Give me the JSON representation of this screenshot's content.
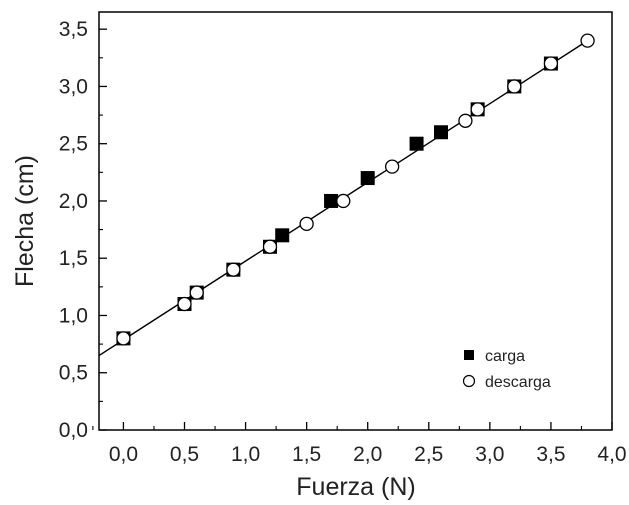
{
  "chart_data": {
    "type": "scatter",
    "xlabel": "Fuerza (N)",
    "ylabel": "Flecha (cm)",
    "xlim": [
      -0.2,
      4.0
    ],
    "ylim": [
      0.0,
      3.65
    ],
    "x_ticks": [
      {
        "value": 0.0,
        "label": "0,0"
      },
      {
        "value": 0.5,
        "label": "0,5"
      },
      {
        "value": 1.0,
        "label": "1,0"
      },
      {
        "value": 1.5,
        "label": "1,5"
      },
      {
        "value": 2.0,
        "label": "2,0"
      },
      {
        "value": 2.5,
        "label": "2,5"
      },
      {
        "value": 3.0,
        "label": "3,0"
      },
      {
        "value": 3.5,
        "label": "3,5"
      },
      {
        "value": 4.0,
        "label": "4,0"
      }
    ],
    "y_ticks": [
      {
        "value": 0.0,
        "label": "0,0"
      },
      {
        "value": 0.5,
        "label": "0,5"
      },
      {
        "value": 1.0,
        "label": "1,0"
      },
      {
        "value": 1.5,
        "label": "1,5"
      },
      {
        "value": 2.0,
        "label": "2,0"
      },
      {
        "value": 2.5,
        "label": "2,5"
      },
      {
        "value": 3.0,
        "label": "3,0"
      },
      {
        "value": 3.5,
        "label": "3,5"
      }
    ],
    "series": [
      {
        "name": "carga",
        "marker": "filled-square",
        "color": "#000000",
        "points": [
          {
            "x": 0.0,
            "y": 0.8
          },
          {
            "x": 0.5,
            "y": 1.1
          },
          {
            "x": 0.6,
            "y": 1.2
          },
          {
            "x": 0.9,
            "y": 1.4
          },
          {
            "x": 1.2,
            "y": 1.6
          },
          {
            "x": 1.3,
            "y": 1.7
          },
          {
            "x": 1.7,
            "y": 2.0
          },
          {
            "x": 2.0,
            "y": 2.2
          },
          {
            "x": 2.4,
            "y": 2.5
          },
          {
            "x": 2.6,
            "y": 2.6
          },
          {
            "x": 2.9,
            "y": 2.8
          },
          {
            "x": 3.2,
            "y": 3.0
          },
          {
            "x": 3.5,
            "y": 3.2
          }
        ]
      },
      {
        "name": "descarga",
        "marker": "open-circle",
        "color": "#000000",
        "points": [
          {
            "x": 0.0,
            "y": 0.8
          },
          {
            "x": 0.5,
            "y": 1.1
          },
          {
            "x": 0.6,
            "y": 1.2
          },
          {
            "x": 0.9,
            "y": 1.4
          },
          {
            "x": 1.2,
            "y": 1.6
          },
          {
            "x": 1.5,
            "y": 1.8
          },
          {
            "x": 1.8,
            "y": 2.0
          },
          {
            "x": 2.2,
            "y": 2.3
          },
          {
            "x": 2.8,
            "y": 2.7
          },
          {
            "x": 2.9,
            "y": 2.8
          },
          {
            "x": 3.2,
            "y": 3.0
          },
          {
            "x": 3.5,
            "y": 3.2
          },
          {
            "x": 3.8,
            "y": 3.4
          }
        ]
      }
    ],
    "fit_line": {
      "x_start": -0.2,
      "y_start": 0.65,
      "x_end": 3.8,
      "y_end": 3.4,
      "color": "#000000"
    },
    "legend": {
      "placement": "bottom-right"
    },
    "grid": false
  }
}
